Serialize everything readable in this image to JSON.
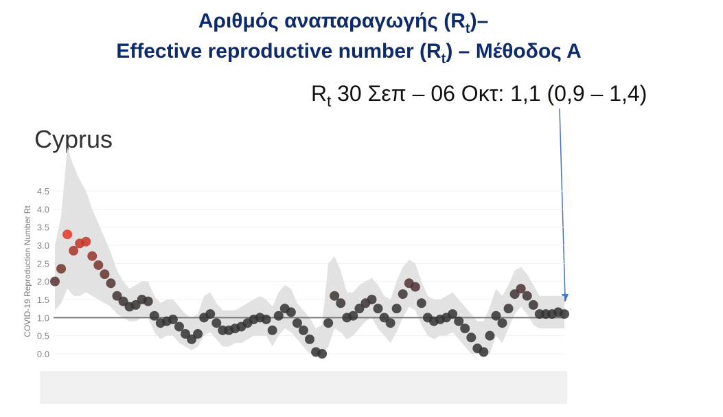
{
  "slide": {
    "title_line1": {
      "text": "Αριθμός αναπαραγωγής (R",
      "sub": "t",
      "tail": ")–"
    },
    "title_line2": {
      "text": "Effective reproductive number (R",
      "sub": "t",
      "tail": ") – Μέθοδος Α"
    },
    "annotation": {
      "text": "R",
      "sub": "t",
      "tail": " 30 Σεπ – 06 Οκτ: 1,1 (0,9 – 1,4)"
    }
  },
  "chart_data": {
    "type": "scatter",
    "title": "Cyprus",
    "y_label": "COVID-19 Reproduction Number Rt",
    "ylim": [
      0,
      4.5
    ],
    "yticks": [
      {
        "value": 0,
        "label": "0.0"
      },
      0.5,
      {
        "value": 1,
        "label": "1.0"
      },
      1.5,
      {
        "value": 2,
        "label": "2.0"
      },
      2.5,
      {
        "value": 3,
        "label": "3.0"
      },
      3.5,
      {
        "value": 4,
        "label": "4.0"
      },
      4.5
    ],
    "grid": true,
    "hline": 1,
    "colors": [
      "#333333",
      "#e53523"
    ],
    "band_color": "#e2e2e2",
    "hline_color": "#777777",
    "categories": [
      null,
      null,
      null,
      null,
      null,
      null,
      null,
      null,
      null,
      null,
      null,
      null,
      null,
      null,
      null,
      null,
      null,
      null,
      null,
      null,
      null,
      null,
      null,
      null,
      null,
      null,
      null,
      null,
      null,
      null,
      null,
      null,
      null,
      null,
      null,
      null,
      null,
      null,
      null,
      null,
      null,
      null,
      null,
      null,
      null,
      null,
      null,
      null,
      null,
      null,
      null,
      null,
      null,
      null,
      null,
      null,
      null,
      null,
      null,
      null,
      null,
      null,
      null,
      null,
      null,
      null,
      null,
      null,
      null,
      null,
      null,
      null,
      null,
      null,
      null,
      null,
      null,
      null,
      null,
      null,
      null,
      null,
      null
    ],
    "values": [
      2.0,
      2.35,
      3.3,
      2.85,
      3.05,
      3.1,
      2.7,
      2.45,
      2.2,
      1.95,
      1.6,
      1.45,
      1.3,
      1.35,
      1.5,
      1.45,
      1.05,
      0.85,
      0.9,
      0.95,
      0.75,
      0.55,
      0.4,
      0.55,
      1.0,
      1.1,
      0.85,
      0.65,
      0.65,
      0.7,
      0.75,
      0.85,
      0.95,
      1.0,
      0.95,
      0.65,
      1.05,
      1.25,
      1.15,
      0.85,
      0.65,
      0.4,
      0.05,
      0.0,
      0.85,
      1.6,
      1.4,
      1.0,
      1.05,
      1.25,
      1.4,
      1.5,
      1.25,
      1.0,
      0.85,
      1.25,
      1.65,
      1.95,
      1.85,
      1.4,
      1.0,
      0.9,
      0.95,
      1.0,
      1.1,
      0.9,
      0.7,
      0.45,
      0.15,
      0.05,
      0.5,
      1.05,
      0.85,
      1.25,
      1.65,
      1.8,
      1.6,
      1.35,
      1.1,
      1.1,
      1.1,
      1.15,
      1.1
    ],
    "upper": [
      3.0,
      3.8,
      5.7,
      5.2,
      4.8,
      4.5,
      4.0,
      3.6,
      3.2,
      2.8,
      2.3,
      2.0,
      1.8,
      1.9,
      2.0,
      2.0,
      1.6,
      1.4,
      1.5,
      1.5,
      1.3,
      1.1,
      1.0,
      1.1,
      1.6,
      1.7,
      1.4,
      1.2,
      1.2,
      1.2,
      1.3,
      1.4,
      1.5,
      1.6,
      1.5,
      1.3,
      1.7,
      1.9,
      1.8,
      1.4,
      1.2,
      1.0,
      0.7,
      0.8,
      2.5,
      2.7,
      2.3,
      1.7,
      1.7,
      1.9,
      2.0,
      2.1,
      1.9,
      1.6,
      1.5,
      2.0,
      2.4,
      2.6,
      2.5,
      2.0,
      1.6,
      1.5,
      1.5,
      1.6,
      1.7,
      1.5,
      1.3,
      1.1,
      0.9,
      0.9,
      1.3,
      1.8,
      1.6,
      1.9,
      2.3,
      2.4,
      2.2,
      1.9,
      1.6,
      1.6,
      1.6,
      1.6,
      1.6
    ],
    "lower": [
      1.2,
      1.4,
      1.8,
      1.6,
      1.6,
      1.7,
      1.6,
      1.5,
      1.4,
      1.3,
      1.1,
      1.0,
      0.9,
      0.9,
      1.0,
      1.0,
      0.6,
      0.4,
      0.5,
      0.5,
      0.3,
      0.2,
      0.1,
      0.2,
      0.5,
      0.6,
      0.4,
      0.2,
      0.2,
      0.3,
      0.3,
      0.4,
      0.5,
      0.5,
      0.5,
      0.2,
      0.5,
      0.7,
      0.6,
      0.4,
      0.2,
      0.0,
      0.0,
      0.0,
      0.2,
      0.7,
      0.6,
      0.4,
      0.5,
      0.7,
      0.9,
      1.0,
      0.7,
      0.5,
      0.3,
      0.6,
      1.0,
      1.3,
      1.2,
      0.8,
      0.5,
      0.4,
      0.5,
      0.5,
      0.6,
      0.4,
      0.2,
      0.0,
      0.0,
      0.0,
      0.0,
      0.5,
      0.3,
      0.7,
      1.1,
      1.3,
      1.1,
      0.8,
      0.7,
      0.7,
      0.7,
      0.7,
      0.7
    ]
  }
}
